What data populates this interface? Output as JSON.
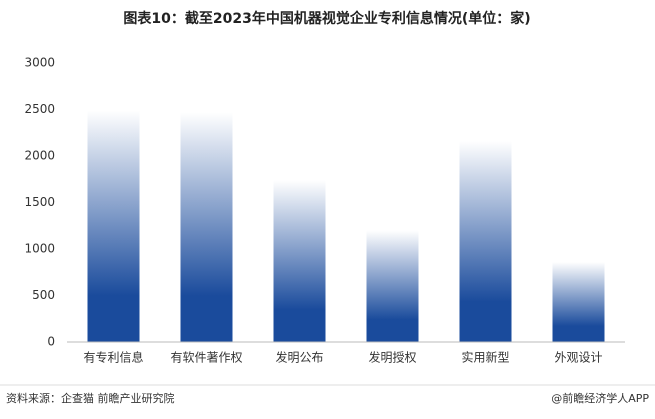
{
  "chart_data": {
    "type": "bar",
    "title": "图表10：截至2023年中国机器视觉企业专利信息情况(单位：家)",
    "categories": [
      "有专利信息",
      "有软件著作权",
      "发明公布",
      "发明授权",
      "实用新型",
      "外观设计"
    ],
    "values": [
      2490,
      2470,
      1740,
      1200,
      2160,
      860
    ],
    "color": "#1a4b9c",
    "ylim": [
      0,
      3000
    ],
    "yticks": [
      0,
      500,
      1000,
      1500,
      2000,
      2500,
      3000
    ],
    "grid": false,
    "source": "资料来源：企查猫 前瞻产业研究院",
    "credit": "@前瞻经济学人APP"
  }
}
